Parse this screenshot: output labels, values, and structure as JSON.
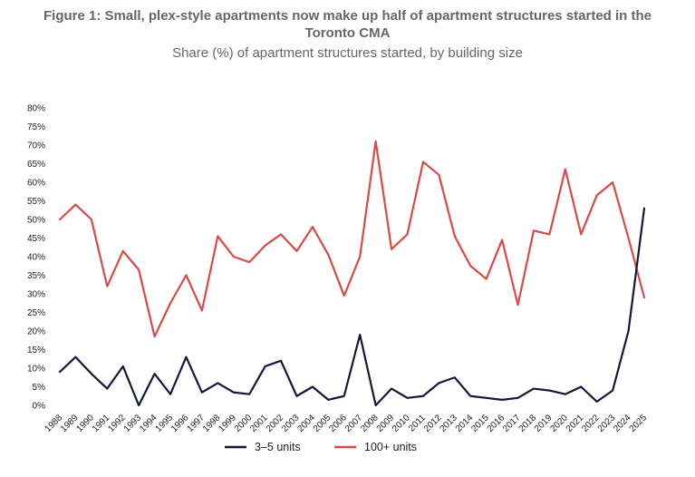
{
  "chart_data": {
    "type": "line",
    "title": "Figure 1: Small, plex-style apartments now make up half of apartment structures started in the Toronto CMA",
    "title_line1": "Figure 1: Small, plex-style apartments now make up half of apartment structures started in the",
    "title_line2": "Toronto CMA",
    "subtitle": "Share (%) of apartment structures started, by building size",
    "xlabel": "",
    "ylabel": "",
    "ylim": [
      0,
      80
    ],
    "y_ticks": [
      "0%",
      "5%",
      "10%",
      "15%",
      "20%",
      "25%",
      "30%",
      "35%",
      "40%",
      "45%",
      "50%",
      "55%",
      "60%",
      "65%",
      "70%",
      "75%",
      "80%"
    ],
    "categories": [
      "1988",
      "1989",
      "1990",
      "1991",
      "1992",
      "1993",
      "1994",
      "1995",
      "1996",
      "1997",
      "1998",
      "1999",
      "2000",
      "2001",
      "2002",
      "2003",
      "2004",
      "2005",
      "2006",
      "2007",
      "2008",
      "2009",
      "2010",
      "2011",
      "2012",
      "2013",
      "2014",
      "2015",
      "2016",
      "2017",
      "2018",
      "2019",
      "2020",
      "2021",
      "2022",
      "2023",
      "2024",
      "2025"
    ],
    "series": [
      {
        "name": "3–5 units",
        "color": "#14163a",
        "values": [
          9,
          13,
          8.5,
          4.5,
          10.5,
          0,
          8.5,
          3,
          13,
          3.5,
          6,
          3.5,
          3,
          10.5,
          12,
          2.5,
          5,
          1.5,
          2.5,
          19,
          0,
          4.5,
          2,
          2.5,
          6,
          7.5,
          2.5,
          2,
          1.5,
          2,
          4.5,
          4,
          3,
          5,
          1,
          4,
          20,
          53
        ]
      },
      {
        "name": "100+ units",
        "color": "#d94a44",
        "values": [
          50,
          54,
          50,
          32,
          41.5,
          36.5,
          18.5,
          27.5,
          35,
          25.5,
          45.5,
          40,
          38.5,
          43,
          46,
          41.5,
          48,
          40.5,
          29.5,
          40,
          71,
          42,
          46,
          65.5,
          62,
          45.5,
          37.5,
          34,
          44.5,
          27,
          47,
          46,
          63.5,
          46,
          56.5,
          60,
          45,
          29
        ]
      }
    ]
  }
}
